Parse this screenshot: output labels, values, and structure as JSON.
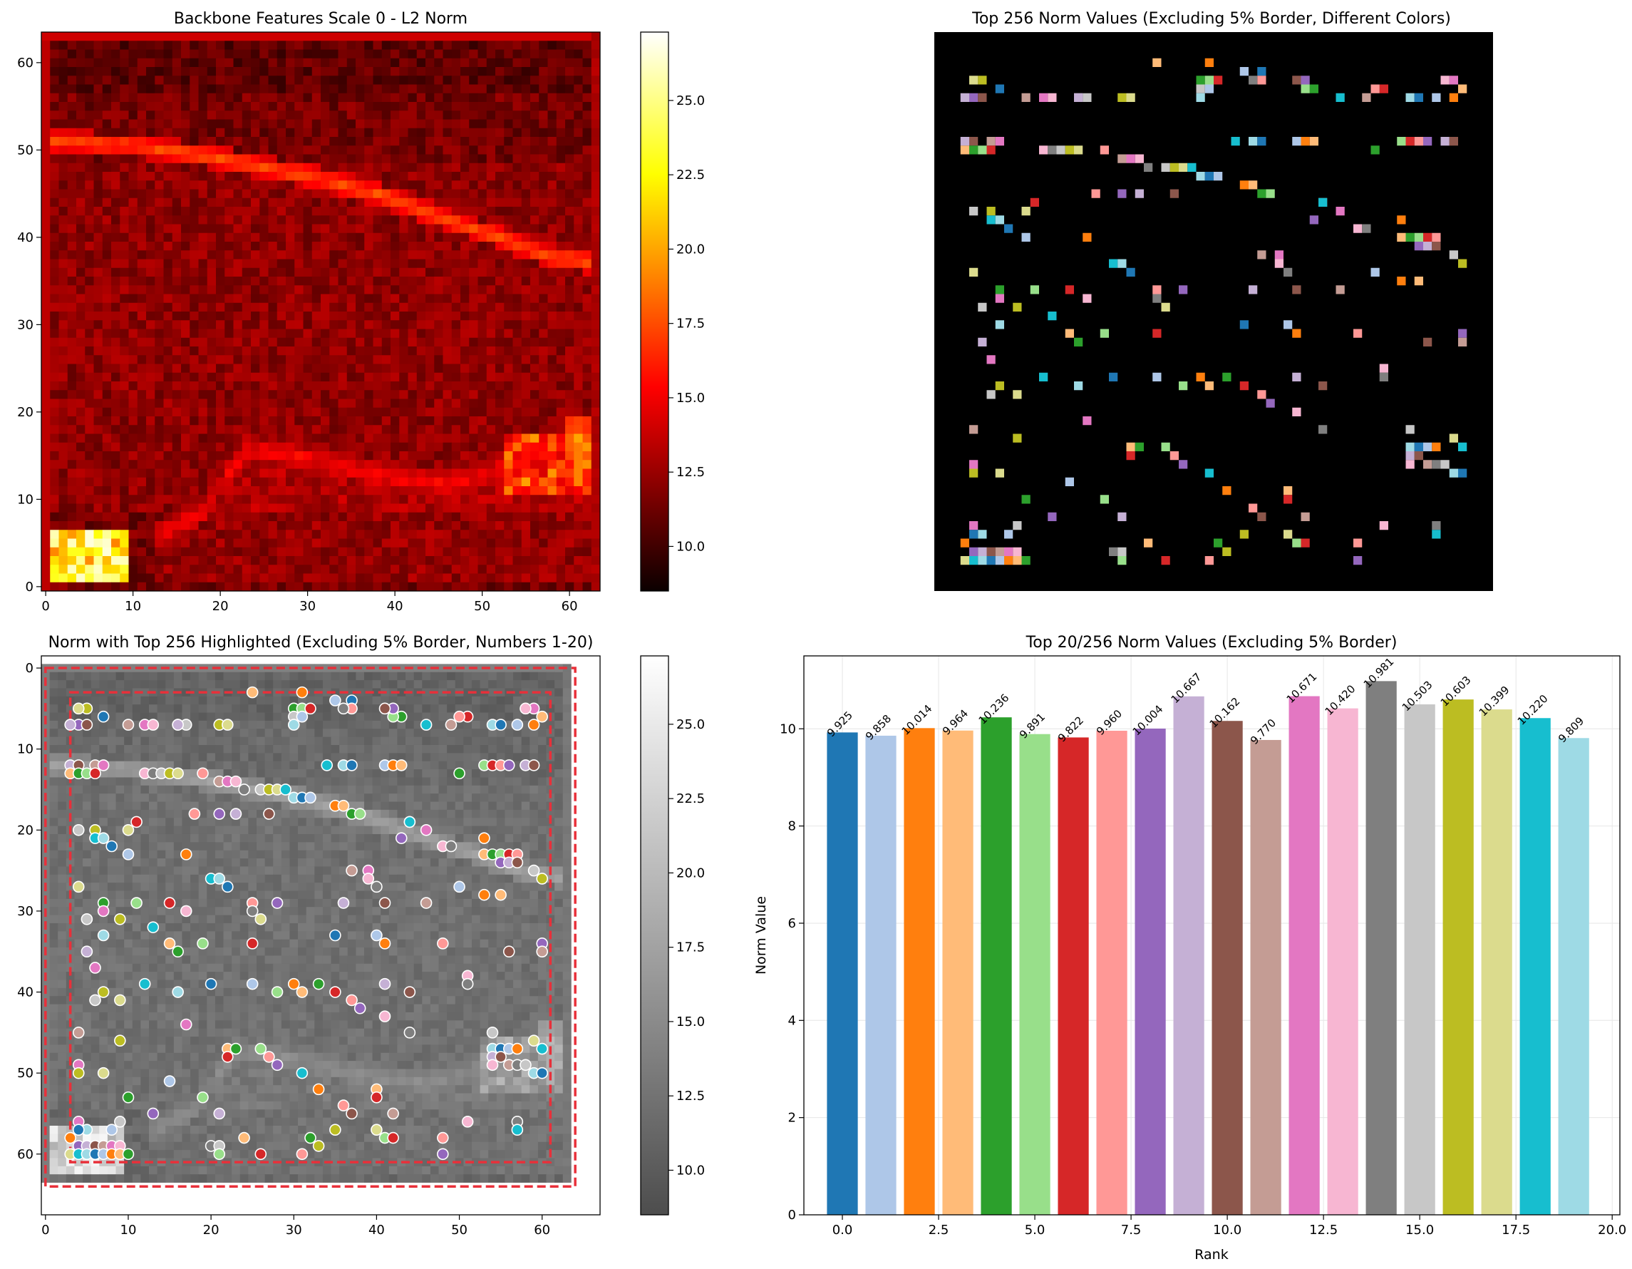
{
  "chart_data": [
    {
      "type": "heatmap",
      "title": "Backbone Features Scale 0 - L2 Norm",
      "colormap": "hot",
      "grid_size": [
        64,
        64
      ],
      "xlim": [
        -0.5,
        63.5
      ],
      "ylim": [
        63.5,
        -0.5
      ],
      "x_ticks": [
        0,
        10,
        20,
        30,
        40,
        50,
        60
      ],
      "y_ticks": [
        0,
        10,
        20,
        30,
        40,
        50,
        60
      ],
      "colorbar": {
        "min": 8.5,
        "max": 27.3,
        "ticks": [
          "10.0",
          "12.5",
          "15.0",
          "17.5",
          "20.0",
          "22.5",
          "25.0"
        ]
      },
      "features": [
        {
          "name": "bright-ridge",
          "path": [
            [
              0,
              12
            ],
            [
              10,
              12.5
            ],
            [
              20,
              14
            ],
            [
              30,
              16
            ],
            [
              38,
              18
            ],
            [
              46,
              21
            ],
            [
              52,
              23
            ],
            [
              57,
              25
            ],
            [
              63,
              26
            ]
          ],
          "peak": 17
        },
        {
          "name": "lower-ridge",
          "path": [
            [
              13,
              57
            ],
            [
              18,
              54
            ],
            [
              23,
              47
            ],
            [
              30,
              48
            ],
            [
              38,
              50
            ],
            [
              46,
              51
            ],
            [
              53,
              49
            ],
            [
              63,
              45
            ]
          ],
          "peak": 14
        },
        {
          "name": "right-patch",
          "center": [
            59,
            49
          ],
          "peak": 20
        },
        {
          "name": "bottom-left-hot",
          "center": [
            5,
            60
          ],
          "peak": 26
        }
      ]
    },
    {
      "type": "heatmap",
      "title": "Top 256 Norm Values (Excluding 5% Border, Different Colors)",
      "colormap": "tab20",
      "axis": "off",
      "background": "#000000",
      "point_count": 256
    },
    {
      "type": "scatter",
      "title": "Norm with Top 256 Highlighted (Excluding 5% Border, Numbers 1-20)",
      "background_colormap": "gray",
      "xlim": [
        -0.5,
        67
      ],
      "ylim": [
        67.5,
        -1.5
      ],
      "x_ticks": [
        0,
        10,
        20,
        30,
        40,
        50,
        60
      ],
      "y_ticks": [
        0,
        10,
        20,
        30,
        40,
        50,
        60
      ],
      "outer_border": [
        0,
        0,
        64,
        64
      ],
      "inner_border": [
        3,
        3,
        61,
        61
      ],
      "colorbar": {
        "min": 8.5,
        "max": 27.3,
        "ticks": [
          "10.0",
          "12.5",
          "15.0",
          "17.5",
          "20.0",
          "22.5",
          "25.0"
        ]
      },
      "points": [
        [
          37,
          4
        ],
        [
          35,
          4
        ],
        [
          31,
          3
        ],
        [
          25,
          3
        ],
        [
          43,
          6
        ],
        [
          42,
          6
        ],
        [
          51,
          6
        ],
        [
          50,
          6
        ],
        [
          4,
          7
        ],
        [
          3,
          7
        ],
        [
          5,
          7
        ],
        [
          10,
          7
        ],
        [
          12,
          7
        ],
        [
          13,
          7
        ],
        [
          16,
          7
        ],
        [
          17,
          7
        ],
        [
          21,
          7
        ],
        [
          22,
          7
        ],
        [
          46,
          7
        ],
        [
          54,
          7
        ],
        [
          55,
          7
        ],
        [
          57,
          7
        ],
        [
          59,
          7
        ],
        [
          60,
          6
        ],
        [
          30,
          5
        ],
        [
          31,
          5
        ],
        [
          32,
          5
        ],
        [
          37,
          5
        ],
        [
          42,
          5
        ],
        [
          3,
          12
        ],
        [
          4,
          12
        ],
        [
          6,
          12
        ],
        [
          7,
          12
        ],
        [
          12,
          13
        ],
        [
          13,
          13
        ],
        [
          14,
          13
        ],
        [
          15,
          13
        ],
        [
          16,
          13
        ],
        [
          34,
          12
        ],
        [
          36,
          12
        ],
        [
          37,
          12
        ],
        [
          41,
          12
        ],
        [
          42,
          12
        ],
        [
          43,
          12
        ],
        [
          50,
          13
        ],
        [
          53,
          12
        ],
        [
          54,
          12
        ],
        [
          55,
          12
        ],
        [
          56,
          12
        ],
        [
          58,
          12
        ],
        [
          59,
          12
        ],
        [
          21,
          14
        ],
        [
          22,
          14
        ],
        [
          23,
          14
        ],
        [
          24,
          15
        ],
        [
          26,
          15
        ],
        [
          27,
          15
        ],
        [
          28,
          15
        ],
        [
          29,
          15
        ],
        [
          30,
          16
        ],
        [
          31,
          16
        ],
        [
          32,
          16
        ],
        [
          35,
          17
        ],
        [
          36,
          17
        ],
        [
          37,
          18
        ],
        [
          38,
          18
        ],
        [
          11,
          19
        ],
        [
          18,
          18
        ],
        [
          21,
          18
        ],
        [
          23,
          18
        ],
        [
          27,
          18
        ],
        [
          44,
          19
        ],
        [
          46,
          20
        ],
        [
          48,
          22
        ],
        [
          49,
          22
        ],
        [
          4,
          20
        ],
        [
          6,
          20
        ],
        [
          10,
          20
        ],
        [
          6,
          21
        ],
        [
          7,
          21
        ],
        [
          8,
          22
        ],
        [
          10,
          23
        ],
        [
          17,
          23
        ],
        [
          53,
          23
        ],
        [
          54,
          23
        ],
        [
          55,
          23
        ],
        [
          56,
          23
        ],
        [
          57,
          23
        ],
        [
          55,
          24
        ],
        [
          56,
          24
        ],
        [
          57,
          24
        ],
        [
          37,
          25
        ],
        [
          39,
          25
        ],
        [
          39,
          26
        ],
        [
          40,
          27
        ],
        [
          59,
          25
        ],
        [
          60,
          26
        ],
        [
          4,
          27
        ],
        [
          20,
          26
        ],
        [
          21,
          26
        ],
        [
          22,
          27
        ],
        [
          50,
          27
        ],
        [
          53,
          28
        ],
        [
          55,
          28
        ],
        [
          7,
          29
        ],
        [
          11,
          29
        ],
        [
          15,
          29
        ],
        [
          25,
          29
        ],
        [
          28,
          29
        ],
        [
          36,
          29
        ],
        [
          41,
          29
        ],
        [
          46,
          29
        ],
        [
          7,
          30
        ],
        [
          17,
          30
        ],
        [
          25,
          30
        ],
        [
          5,
          31
        ],
        [
          9,
          31
        ],
        [
          26,
          31
        ],
        [
          13,
          32
        ],
        [
          7,
          33
        ],
        [
          35,
          33
        ],
        [
          40,
          33
        ],
        [
          41,
          34
        ],
        [
          15,
          34
        ],
        [
          16,
          35
        ],
        [
          19,
          34
        ],
        [
          25,
          34
        ],
        [
          48,
          34
        ],
        [
          60,
          34
        ],
        [
          5,
          35
        ],
        [
          56,
          35
        ],
        [
          60,
          35
        ],
        [
          6,
          37
        ],
        [
          51,
          38
        ],
        [
          51,
          39
        ],
        [
          6,
          41
        ],
        [
          7,
          40
        ],
        [
          9,
          41
        ],
        [
          12,
          39
        ],
        [
          16,
          40
        ],
        [
          20,
          39
        ],
        [
          25,
          39
        ],
        [
          30,
          39
        ],
        [
          31,
          40
        ],
        [
          33,
          39
        ],
        [
          28,
          40
        ],
        [
          35,
          40
        ],
        [
          37,
          41
        ],
        [
          38,
          42
        ],
        [
          41,
          39
        ],
        [
          44,
          40
        ],
        [
          4,
          45
        ],
        [
          17,
          44
        ],
        [
          41,
          43
        ],
        [
          44,
          45
        ],
        [
          54,
          45
        ],
        [
          9,
          46
        ],
        [
          59,
          46
        ],
        [
          60,
          47
        ],
        [
          54,
          47
        ],
        [
          55,
          47
        ],
        [
          56,
          47
        ],
        [
          57,
          47
        ],
        [
          22,
          47
        ],
        [
          23,
          47
        ],
        [
          26,
          47
        ],
        [
          22,
          48
        ],
        [
          27,
          48
        ],
        [
          28,
          49
        ],
        [
          54,
          48
        ],
        [
          55,
          48
        ],
        [
          56,
          49
        ],
        [
          4,
          49
        ],
        [
          54,
          49
        ],
        [
          57,
          49
        ],
        [
          58,
          49
        ],
        [
          4,
          50
        ],
        [
          7,
          50
        ],
        [
          31,
          50
        ],
        [
          59,
          50
        ],
        [
          60,
          50
        ],
        [
          15,
          51
        ],
        [
          33,
          52
        ],
        [
          40,
          52
        ],
        [
          10,
          53
        ],
        [
          19,
          53
        ],
        [
          40,
          53
        ],
        [
          36,
          54
        ],
        [
          13,
          55
        ],
        [
          21,
          55
        ],
        [
          37,
          55
        ],
        [
          42,
          55
        ],
        [
          4,
          56
        ],
        [
          51,
          56
        ],
        [
          57,
          56
        ],
        [
          9,
          56
        ],
        [
          35,
          57
        ],
        [
          40,
          57
        ],
        [
          57,
          57
        ],
        [
          5,
          57
        ],
        [
          4,
          57
        ],
        [
          8,
          57
        ],
        [
          3,
          58
        ],
        [
          24,
          58
        ],
        [
          32,
          58
        ],
        [
          41,
          58
        ],
        [
          42,
          58
        ],
        [
          48,
          58
        ],
        [
          4,
          59
        ],
        [
          5,
          59
        ],
        [
          6,
          59
        ],
        [
          7,
          59
        ],
        [
          8,
          59
        ],
        [
          9,
          59
        ],
        [
          20,
          59
        ],
        [
          21,
          59
        ],
        [
          33,
          59
        ],
        [
          3,
          60
        ],
        [
          4,
          60
        ],
        [
          5,
          60
        ],
        [
          6,
          60
        ],
        [
          7,
          60
        ],
        [
          8,
          60
        ],
        [
          9,
          60
        ],
        [
          10,
          60
        ],
        [
          21,
          60
        ],
        [
          26,
          60
        ],
        [
          31,
          60
        ],
        [
          48,
          60
        ],
        [
          16,
          7
        ],
        [
          41,
          5
        ],
        [
          49,
          7
        ],
        [
          59,
          5
        ],
        [
          58,
          5
        ],
        [
          36,
          5
        ],
        [
          30,
          6
        ],
        [
          5,
          5
        ],
        [
          4,
          5
        ],
        [
          44,
          19
        ],
        [
          30,
          7
        ],
        [
          7,
          6
        ],
        [
          31,
          6
        ],
        [
          53,
          21
        ],
        [
          3,
          13
        ],
        [
          4,
          13
        ],
        [
          5,
          13
        ],
        [
          6,
          13
        ],
        [
          19,
          13
        ],
        [
          43,
          21
        ]
      ]
    },
    {
      "type": "bar",
      "title": "Top 20/256 Norm Values (Excluding 5% Border)",
      "xlabel": "Rank",
      "ylabel": "Norm Value",
      "xlim": [
        -1.0,
        20.2
      ],
      "ylim": [
        0,
        11.5
      ],
      "x_ticks": [
        "0.0",
        "2.5",
        "5.0",
        "7.5",
        "10.0",
        "12.5",
        "15.0",
        "17.5",
        "20.0"
      ],
      "y_ticks": [
        "0",
        "2",
        "4",
        "6",
        "8",
        "10"
      ],
      "grid": true,
      "x": [
        0,
        1,
        2,
        3,
        4,
        5,
        6,
        7,
        8,
        9,
        10,
        11,
        12,
        13,
        14,
        15,
        16,
        17,
        18,
        19
      ],
      "values": [
        9.925,
        9.858,
        10.014,
        9.964,
        10.236,
        9.891,
        9.822,
        9.96,
        10.004,
        10.667,
        10.162,
        9.77,
        10.671,
        10.42,
        10.981,
        10.503,
        10.603,
        10.399,
        10.22,
        9.809
      ],
      "labels": [
        "9.925",
        "9.858",
        "10.014",
        "9.964",
        "10.236",
        "9.891",
        "9.822",
        "9.960",
        "10.004",
        "10.667",
        "10.162",
        "9.770",
        "10.671",
        "10.420",
        "10.981",
        "10.503",
        "10.603",
        "10.399",
        "10.220",
        "9.809"
      ],
      "colors": [
        "#1f77b4",
        "#aec7e8",
        "#ff7f0e",
        "#ffbb78",
        "#2ca02c",
        "#98df8a",
        "#d62728",
        "#ff9896",
        "#9467bd",
        "#c5b0d5",
        "#8c564b",
        "#c49c94",
        "#e377c2",
        "#f7b6d2",
        "#7f7f7f",
        "#c7c7c7",
        "#bcbd22",
        "#dbdb8d",
        "#17becf",
        "#9edae5"
      ]
    }
  ]
}
